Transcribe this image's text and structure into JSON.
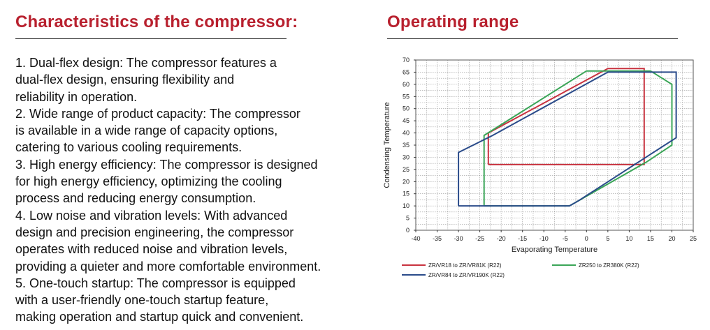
{
  "left": {
    "title": "Characteristics of the compressor:",
    "features": [
      [
        "1. Dual-flex design: The compressor features a",
        "dual-flex design, ensuring flexibility and",
        "reliability in operation."
      ],
      [
        "2. Wide range of product capacity: The compressor",
        "is available in a wide range of capacity options,",
        "catering to various cooling requirements."
      ],
      [
        "3. High energy efficiency: The compressor is designed",
        "for high energy efficiency, optimizing the cooling",
        "process and reducing energy consumption."
      ],
      [
        "4. Low noise and vibration levels: With advanced",
        "design and precision engineering, the compressor",
        "operates with reduced noise and vibration levels,",
        "providing a quieter and more comfortable environment."
      ],
      [
        "5. One-touch startup: The compressor is equipped",
        "with a user-friendly one-touch startup feature,",
        "making operation and startup quick and convenient."
      ]
    ]
  },
  "right": {
    "title": "Operating range"
  },
  "chart_data": {
    "type": "line",
    "title": "",
    "xlabel": "Evaporating Temperature",
    "ylabel": "Condensing Temperature",
    "xlim": [
      -40,
      25
    ],
    "ylim": [
      0,
      70
    ],
    "xticks": [
      -40,
      -35,
      -30,
      -25,
      -20,
      -15,
      -10,
      -5,
      0,
      5,
      10,
      15,
      20,
      25
    ],
    "yticks": [
      0,
      5,
      10,
      15,
      20,
      25,
      30,
      35,
      40,
      45,
      50,
      55,
      60,
      65,
      70
    ],
    "grid": true,
    "legend_position": "bottom",
    "series": [
      {
        "name": "ZR/VR18 to ZR/VR81K (R22)",
        "color": "#c8323f",
        "points": [
          [
            -23,
            27
          ],
          [
            -23,
            40
          ],
          [
            5,
            66.5
          ],
          [
            13.5,
            66.5
          ],
          [
            13.5,
            27
          ],
          [
            -23,
            27
          ]
        ]
      },
      {
        "name": "ZR250 to ZR380K (R22)",
        "color": "#3aa557",
        "points": [
          [
            -24,
            10
          ],
          [
            -24,
            39
          ],
          [
            0,
            65.5
          ],
          [
            15,
            65.5
          ],
          [
            20,
            60
          ],
          [
            20,
            35
          ],
          [
            14,
            28
          ],
          [
            -4,
            10
          ],
          [
            -24,
            10
          ]
        ]
      },
      {
        "name": "ZR/VR84 to ZR/VR190K (R22)",
        "color": "#2a4b8a",
        "points": [
          [
            -30,
            10
          ],
          [
            -30,
            32
          ],
          [
            -22,
            39
          ],
          [
            5,
            65
          ],
          [
            21,
            65
          ],
          [
            21,
            38
          ],
          [
            -2,
            12
          ],
          [
            -4,
            10
          ],
          [
            -30,
            10
          ]
        ]
      }
    ]
  }
}
